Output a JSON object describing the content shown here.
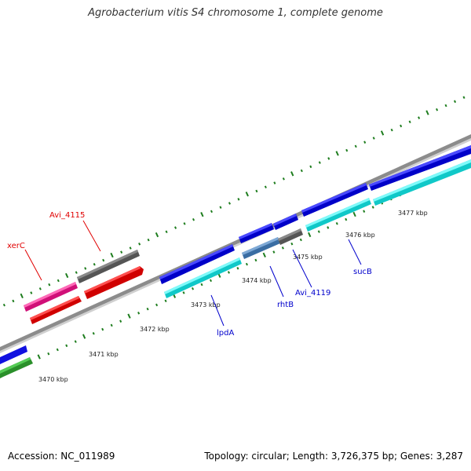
{
  "title": "Agrobacterium vitis S4 chromosome 1, complete genome",
  "accession_text": "Accession: NC_011989",
  "topology_text": "Topology: circular; Length: 3,726,375 bp; Genes: 3,287",
  "colors": {
    "backbone": "#8c8c8c",
    "tick": "#1e7d1e",
    "forward_cds": "#1010e0",
    "reverse_cds": "#33eaea",
    "rrna_like": "#ff1493",
    "red_feature": "#ff1a1a",
    "gray_feature": "#6e6e6e",
    "steel_feature": "#4a7fb5",
    "green_feature": "#33aa33",
    "label_red": "#e00000",
    "label_blue": "#0000cc"
  },
  "kbp_labels": [
    "3470 kbp",
    "3471 kbp",
    "3472 kbp",
    "3473 kbp",
    "3474 kbp",
    "3475 kbp",
    "3476 kbp",
    "3477 kbp"
  ],
  "gene_labels": [
    {
      "text": "xerC",
      "color": "red"
    },
    {
      "text": "Avi_4115",
      "color": "red"
    },
    {
      "text": "lpdA",
      "color": "blue"
    },
    {
      "text": "rhtB",
      "color": "blue"
    },
    {
      "text": "Avi_4119",
      "color": "blue"
    },
    {
      "text": "sucB",
      "color": "blue"
    }
  ]
}
